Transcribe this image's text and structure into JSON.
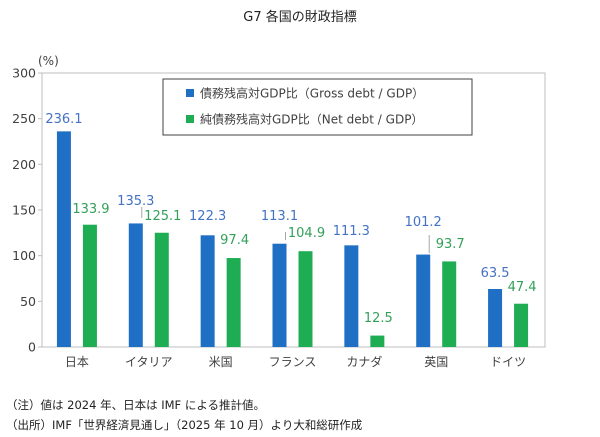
{
  "chart_data": {
    "type": "bar",
    "title": "G7 各国の財政指標",
    "ylabel": "(%)",
    "ylim": [
      0,
      300
    ],
    "yticks": [
      0,
      50,
      100,
      150,
      200,
      250,
      300
    ],
    "grid": false,
    "legend_position": "top-right",
    "categories": [
      "日本",
      "イタリア",
      "米国",
      "フランス",
      "カナダ",
      "英国",
      "ドイツ"
    ],
    "series": [
      {
        "name": "債務残高対GDP比（Gross debt / GDP）",
        "color": "#1f6fc5",
        "values": [
          236.1,
          135.3,
          122.3,
          113.1,
          111.3,
          101.2,
          63.5
        ]
      },
      {
        "name": "純債務残高対GDP比（Net debt / GDP）",
        "color": "#1fad54",
        "values": [
          133.9,
          125.1,
          97.4,
          104.9,
          12.5,
          93.7,
          47.4
        ]
      }
    ],
    "data_label_colors": [
      "#4472c4",
      "#33a05a"
    ]
  },
  "notes": {
    "note1": "（注）値は 2024 年、日本は IMF による推計値。",
    "note2": "（出所）IMF「世界経済見通し」（2025 年 10 月）より大和総研作成"
  }
}
